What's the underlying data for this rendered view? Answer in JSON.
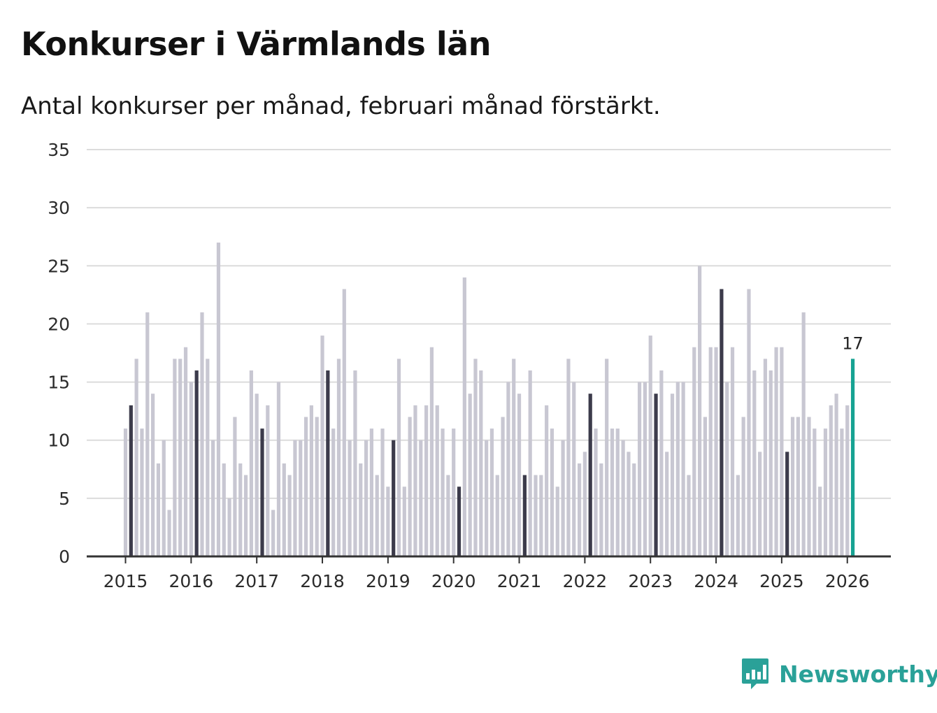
{
  "chart_data": {
    "type": "bar",
    "title": "Konkurser i Värmlands län",
    "subtitle": "Antal konkurser per månad, februari månad förstärkt.",
    "xlabel": "",
    "ylabel": "",
    "ylim": [
      0,
      35
    ],
    "yticks": [
      0,
      5,
      10,
      15,
      20,
      25,
      30,
      35
    ],
    "grid": true,
    "start": "2015-01",
    "x_tick_labels": [
      "2015",
      "2016",
      "2017",
      "2018",
      "2019",
      "2020",
      "2021",
      "2022",
      "2023",
      "2024",
      "2025",
      "2026"
    ],
    "values": [
      11,
      13,
      17,
      11,
      21,
      14,
      8,
      10,
      4,
      17,
      17,
      18,
      15,
      16,
      21,
      17,
      10,
      27,
      8,
      5,
      12,
      8,
      7,
      16,
      14,
      11,
      13,
      4,
      15,
      8,
      7,
      10,
      10,
      12,
      13,
      12,
      19,
      16,
      11,
      17,
      23,
      10,
      16,
      8,
      10,
      11,
      7,
      11,
      6,
      10,
      17,
      6,
      12,
      13,
      10,
      13,
      18,
      13,
      11,
      7,
      11,
      6,
      24,
      14,
      17,
      16,
      10,
      11,
      7,
      12,
      15,
      17,
      14,
      7,
      16,
      7,
      7,
      13,
      11,
      6,
      10,
      17,
      15,
      8,
      9,
      14,
      11,
      8,
      17,
      11,
      11,
      10,
      9,
      8,
      15,
      15,
      19,
      14,
      16,
      9,
      14,
      15,
      15,
      7,
      18,
      25,
      12,
      18,
      18,
      23,
      15,
      18,
      7,
      12,
      23,
      16,
      9,
      17,
      16,
      18,
      18,
      9,
      12,
      12,
      21,
      12,
      11,
      6,
      11,
      13,
      14,
      11,
      13,
      17
    ],
    "highlight": "februari",
    "last_value_label": "17",
    "colors": {
      "bar": "#c8c7d2",
      "highlight": "#3c3b4b",
      "latest": "#17a393",
      "grid": "#dcdcdc",
      "axis": "#333333"
    }
  },
  "brand": {
    "name": "Newsworthy",
    "icon": "newsworthy-logo-icon",
    "color": "#2aa198"
  }
}
